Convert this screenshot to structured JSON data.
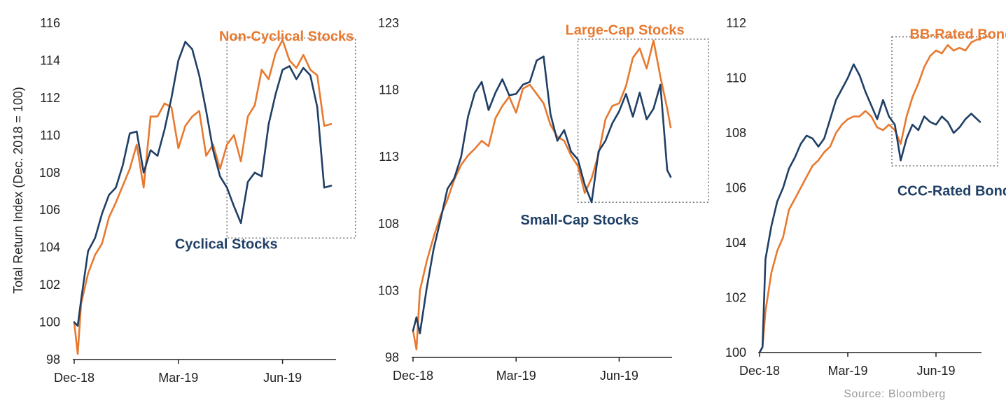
{
  "colors": {
    "orange": "#e8792f",
    "navy": "#1f3f66",
    "axis": "#222222",
    "box": "#7a7a7a"
  },
  "source": "Source: Bloomberg",
  "chart_data": [
    {
      "type": "line",
      "ylabel": "Total Return Index (Dec. 2018 = 100)",
      "ylim": [
        98,
        116
      ],
      "yticks": [
        98,
        100,
        102,
        104,
        106,
        108,
        110,
        112,
        114,
        116
      ],
      "xlim": [
        0,
        7.5
      ],
      "xticks": [
        {
          "v": 0,
          "label": "Dec-18"
        },
        {
          "v": 3,
          "label": "Mar-19"
        },
        {
          "v": 6,
          "label": "Jun-19"
        }
      ],
      "highlight_box": {
        "x0": 4.4,
        "x1": 8.1,
        "y0": 104.5,
        "y1": 115.2
      },
      "series": [
        {
          "name": "Non-Cyclical Stocks",
          "color": "orange",
          "label_anchor": [
            8.05,
            115.3
          ],
          "label_align": "end",
          "x": [
            0,
            0.1,
            0.2,
            0.4,
            0.6,
            0.8,
            1.0,
            1.2,
            1.4,
            1.6,
            1.8,
            2.0,
            2.2,
            2.4,
            2.6,
            2.8,
            3.0,
            3.2,
            3.4,
            3.6,
            3.8,
            4.0,
            4.2,
            4.4,
            4.6,
            4.8,
            5.0,
            5.2,
            5.4,
            5.6,
            5.8,
            6.0,
            6.2,
            6.4,
            6.6,
            6.8,
            7.0,
            7.2,
            7.4
          ],
          "y": [
            100,
            98.3,
            101.0,
            102.6,
            103.6,
            104.2,
            105.6,
            106.4,
            107.3,
            108.2,
            109.5,
            107.2,
            111.0,
            111.0,
            111.7,
            111.5,
            109.3,
            110.5,
            111.0,
            111.3,
            108.9,
            109.5,
            108.2,
            109.5,
            110.0,
            108.6,
            111.0,
            111.6,
            113.5,
            113.0,
            114.4,
            115.1,
            114.0,
            113.6,
            114.3,
            113.5,
            113.2,
            110.5,
            110.6
          ]
        },
        {
          "name": "Cyclical Stocks",
          "color": "navy",
          "label_anchor": [
            2.9,
            104.2
          ],
          "label_align": "start",
          "x": [
            0,
            0.1,
            0.2,
            0.4,
            0.6,
            0.8,
            1.0,
            1.2,
            1.4,
            1.6,
            1.8,
            2.0,
            2.2,
            2.4,
            2.6,
            2.8,
            3.0,
            3.2,
            3.4,
            3.6,
            3.8,
            4.0,
            4.2,
            4.4,
            4.6,
            4.8,
            5.0,
            5.2,
            5.4,
            5.6,
            5.8,
            6.0,
            6.2,
            6.4,
            6.6,
            6.8,
            7.0,
            7.2,
            7.4
          ],
          "y": [
            100,
            99.8,
            101.2,
            103.8,
            104.5,
            105.8,
            106.8,
            107.2,
            108.4,
            110.1,
            110.2,
            108.0,
            109.2,
            108.9,
            110.3,
            112.0,
            114.0,
            115.0,
            114.6,
            113.2,
            111.3,
            109.2,
            107.8,
            107.2,
            106.2,
            105.3,
            107.5,
            108.0,
            107.8,
            110.6,
            112.2,
            113.5,
            113.7,
            113.0,
            113.6,
            113.2,
            111.5,
            107.2,
            107.3
          ]
        }
      ]
    },
    {
      "type": "line",
      "ylabel": "",
      "ylim": [
        98,
        123
      ],
      "yticks": [
        98,
        103,
        108,
        113,
        118,
        123
      ],
      "xlim": [
        0,
        7.5
      ],
      "xticks": [
        {
          "v": 0,
          "label": "Dec-18"
        },
        {
          "v": 3,
          "label": "Mar-19"
        },
        {
          "v": 6,
          "label": "Jun-19"
        }
      ],
      "highlight_box": {
        "x0": 4.8,
        "x1": 8.6,
        "y0": 109.6,
        "y1": 121.8
      },
      "series": [
        {
          "name": "Large-Cap Stocks",
          "color": "orange",
          "label_anchor": [
            7.9,
            122.5
          ],
          "label_align": "end",
          "x": [
            0,
            0.1,
            0.2,
            0.4,
            0.6,
            0.8,
            1.0,
            1.2,
            1.4,
            1.6,
            1.8,
            2.0,
            2.2,
            2.4,
            2.6,
            2.8,
            3.0,
            3.2,
            3.4,
            3.6,
            3.8,
            4.0,
            4.2,
            4.4,
            4.6,
            4.8,
            5.0,
            5.2,
            5.4,
            5.6,
            5.8,
            6.0,
            6.2,
            6.4,
            6.6,
            6.8,
            7.0,
            7.2,
            7.4,
            7.5
          ],
          "y": [
            100,
            98.6,
            103.0,
            105.2,
            107.0,
            108.6,
            109.8,
            111.3,
            112.4,
            113.1,
            113.6,
            114.2,
            113.8,
            115.9,
            116.8,
            117.5,
            116.3,
            118.1,
            118.4,
            117.7,
            117.0,
            115.4,
            114.5,
            114.2,
            113.1,
            112.3,
            110.3,
            111.4,
            113.2,
            115.8,
            116.8,
            117.0,
            118.3,
            120.4,
            121.1,
            119.6,
            121.7,
            119.0,
            116.6,
            115.2
          ]
        },
        {
          "name": "Small-Cap Stocks",
          "color": "navy",
          "label_anchor": [
            4.85,
            108.3
          ],
          "label_align": "middle",
          "x": [
            0,
            0.1,
            0.2,
            0.4,
            0.6,
            0.8,
            1.0,
            1.2,
            1.4,
            1.6,
            1.8,
            2.0,
            2.2,
            2.4,
            2.6,
            2.8,
            3.0,
            3.2,
            3.4,
            3.6,
            3.8,
            4.0,
            4.2,
            4.4,
            4.6,
            4.8,
            5.0,
            5.2,
            5.4,
            5.6,
            5.8,
            6.0,
            6.2,
            6.4,
            6.6,
            6.8,
            7.0,
            7.2,
            7.4,
            7.5
          ],
          "y": [
            100,
            101,
            99.8,
            103.2,
            106.1,
            108.3,
            110.6,
            111.4,
            113.0,
            116.0,
            117.8,
            118.6,
            116.5,
            117.8,
            118.8,
            117.6,
            117.7,
            118.4,
            118.6,
            120.2,
            120.5,
            116.2,
            114.2,
            115.0,
            113.4,
            112.8,
            110.9,
            109.6,
            113.4,
            114.2,
            115.5,
            116.4,
            117.7,
            116.0,
            117.8,
            115.8,
            116.6,
            118.4,
            112.0,
            111.5
          ]
        }
      ]
    },
    {
      "type": "line",
      "ylabel": "",
      "ylim": [
        100,
        112
      ],
      "yticks": [
        100,
        102,
        104,
        106,
        108,
        110,
        112
      ],
      "xlim": [
        0,
        7.5
      ],
      "xticks": [
        {
          "v": 0,
          "label": "Dec-18"
        },
        {
          "v": 3,
          "label": "Mar-19"
        },
        {
          "v": 6,
          "label": "Jun-19"
        }
      ],
      "highlight_box": {
        "x0": 4.5,
        "x1": 8.1,
        "y0": 106.8,
        "y1": 111.5
      },
      "series": [
        {
          "name": "BB-Rated Bonds",
          "color": "orange",
          "label_anchor": [
            7.0,
            111.6
          ],
          "label_align": "middle",
          "x": [
            0,
            0.1,
            0.2,
            0.4,
            0.6,
            0.8,
            1.0,
            1.2,
            1.4,
            1.6,
            1.8,
            2.0,
            2.2,
            2.4,
            2.6,
            2.8,
            3.0,
            3.2,
            3.4,
            3.6,
            3.8,
            4.0,
            4.2,
            4.4,
            4.6,
            4.8,
            5.0,
            5.2,
            5.4,
            5.6,
            5.8,
            6.0,
            6.2,
            6.4,
            6.6,
            6.8,
            7.0,
            7.2,
            7.4,
            7.5
          ],
          "y": [
            100,
            100.2,
            101.5,
            102.9,
            103.7,
            104.2,
            105.2,
            105.6,
            106.0,
            106.4,
            106.8,
            107.0,
            107.3,
            107.5,
            108.0,
            108.3,
            108.5,
            108.6,
            108.6,
            108.8,
            108.6,
            108.2,
            108.1,
            108.3,
            108.1,
            107.6,
            108.6,
            109.3,
            109.8,
            110.4,
            110.8,
            111.0,
            110.9,
            111.2,
            111.0,
            111.1,
            111.0,
            111.3,
            111.4,
            111.4
          ]
        },
        {
          "name": "CCC-Rated Bonds",
          "color": "navy",
          "label_anchor": [
            6.75,
            105.9
          ],
          "label_align": "middle",
          "x": [
            0,
            0.1,
            0.2,
            0.4,
            0.6,
            0.8,
            1.0,
            1.2,
            1.4,
            1.6,
            1.8,
            2.0,
            2.2,
            2.4,
            2.6,
            2.8,
            3.0,
            3.2,
            3.4,
            3.6,
            3.8,
            4.0,
            4.2,
            4.4,
            4.6,
            4.8,
            5.0,
            5.2,
            5.4,
            5.6,
            5.8,
            6.0,
            6.2,
            6.4,
            6.6,
            6.8,
            7.0,
            7.2,
            7.4,
            7.5
          ],
          "y": [
            100,
            100.2,
            103.4,
            104.6,
            105.5,
            106.0,
            106.7,
            107.1,
            107.6,
            107.9,
            107.8,
            107.5,
            107.8,
            108.5,
            109.2,
            109.6,
            110.0,
            110.5,
            110.1,
            109.5,
            109.0,
            108.5,
            109.2,
            108.6,
            108.3,
            107.0,
            107.8,
            108.3,
            108.1,
            108.6,
            108.4,
            108.3,
            108.6,
            108.4,
            108.0,
            108.2,
            108.5,
            108.7,
            108.5,
            108.4
          ]
        }
      ]
    }
  ]
}
